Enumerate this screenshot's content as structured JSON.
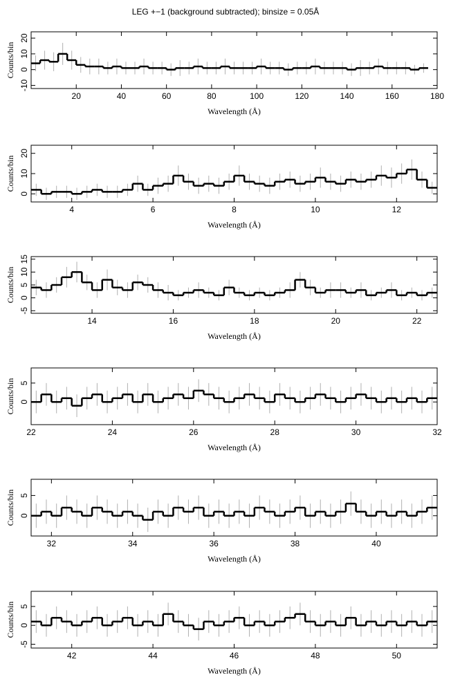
{
  "title": "LEG +−1 (background subtracted); binsize = 0.05Å",
  "chart_data": [
    {
      "type": "line",
      "xlabel": "Wavelength (Å)",
      "ylabel": "Counts/bin",
      "color": "#000000",
      "error_color": "#b0b0b0",
      "xlim": [
        0,
        180
      ],
      "xticks": [
        20,
        40,
        60,
        80,
        100,
        120,
        140,
        160,
        180
      ],
      "ylim": [
        -12,
        24
      ],
      "yticks": [
        -10,
        0,
        10,
        20
      ],
      "x": [
        2,
        6,
        10,
        14,
        18,
        22,
        26,
        30,
        34,
        38,
        42,
        46,
        50,
        54,
        58,
        62,
        66,
        70,
        74,
        78,
        82,
        86,
        90,
        94,
        98,
        102,
        106,
        110,
        114,
        118,
        122,
        126,
        130,
        134,
        138,
        142,
        146,
        150,
        154,
        158,
        162,
        166,
        170,
        174
      ],
      "values": [
        4,
        6,
        5,
        10,
        6,
        3,
        2,
        2,
        1,
        2,
        1,
        1,
        2,
        1,
        1,
        0,
        1,
        1,
        2,
        1,
        1,
        2,
        1,
        1,
        1,
        2,
        1,
        1,
        0,
        1,
        1,
        2,
        1,
        1,
        1,
        0,
        1,
        1,
        2,
        1,
        1,
        1,
        0,
        1
      ],
      "errors": [
        5,
        6,
        6,
        7,
        6,
        5,
        5,
        5,
        4,
        5,
        4,
        4,
        5,
        4,
        4,
        4,
        5,
        4,
        5,
        4,
        4,
        5,
        4,
        4,
        4,
        5,
        4,
        4,
        4,
        4,
        4,
        5,
        4,
        4,
        4,
        4,
        5,
        4,
        5,
        4,
        4,
        4,
        3,
        3
      ]
    },
    {
      "type": "line",
      "xlabel": "Wavelength (Å)",
      "ylabel": "Counts/bin",
      "color": "#000000",
      "error_color": "#b0b0b0",
      "xlim": [
        3,
        13
      ],
      "xticks": [
        4,
        6,
        8,
        10,
        12
      ],
      "ylim": [
        -4,
        24
      ],
      "yticks": [
        0,
        10,
        20
      ],
      "x": [
        3.125,
        3.375,
        3.625,
        3.875,
        4.125,
        4.375,
        4.625,
        4.875,
        5.125,
        5.375,
        5.625,
        5.875,
        6.125,
        6.375,
        6.625,
        6.875,
        7.125,
        7.375,
        7.625,
        7.875,
        8.125,
        8.375,
        8.625,
        8.875,
        9.125,
        9.375,
        9.625,
        9.875,
        10.125,
        10.375,
        10.625,
        10.875,
        11.125,
        11.375,
        11.625,
        11.875,
        12.125,
        12.375,
        12.625,
        12.875
      ],
      "values": [
        2,
        0,
        1,
        1,
        0,
        1,
        2,
        1,
        1,
        2,
        5,
        2,
        4,
        5,
        9,
        6,
        4,
        5,
        4,
        6,
        9,
        6,
        5,
        4,
        6,
        7,
        5,
        6,
        8,
        6,
        5,
        7,
        6,
        7,
        9,
        8,
        10,
        12,
        7,
        3
      ],
      "errors": [
        3,
        3,
        3,
        3,
        3,
        3,
        3,
        3,
        3,
        3,
        4,
        3,
        4,
        4,
        5,
        4,
        4,
        4,
        4,
        4,
        5,
        4,
        4,
        4,
        4,
        4,
        4,
        4,
        5,
        4,
        4,
        4,
        4,
        4,
        5,
        5,
        5,
        5,
        4,
        3
      ]
    },
    {
      "type": "line",
      "xlabel": "Wavelength (Å)",
      "ylabel": "Counts/bin",
      "color": "#000000",
      "error_color": "#b0b0b0",
      "xlim": [
        12.5,
        22.5
      ],
      "xticks": [
        14,
        16,
        18,
        20,
        22
      ],
      "ylim": [
        -6,
        16
      ],
      "yticks": [
        -5,
        0,
        5,
        10,
        15
      ],
      "x": [
        12.625,
        12.875,
        13.125,
        13.375,
        13.625,
        13.875,
        14.125,
        14.375,
        14.625,
        14.875,
        15.125,
        15.375,
        15.625,
        15.875,
        16.125,
        16.375,
        16.625,
        16.875,
        17.125,
        17.375,
        17.625,
        17.875,
        18.125,
        18.375,
        18.625,
        18.875,
        19.125,
        19.375,
        19.625,
        19.875,
        20.125,
        20.375,
        20.625,
        20.875,
        21.125,
        21.375,
        21.625,
        21.875,
        22.125,
        22.375
      ],
      "values": [
        4,
        3,
        5,
        8,
        10,
        6,
        3,
        7,
        4,
        3,
        6,
        5,
        3,
        2,
        1,
        2,
        3,
        2,
        1,
        4,
        2,
        1,
        2,
        1,
        2,
        3,
        7,
        4,
        2,
        3,
        3,
        2,
        3,
        1,
        2,
        3,
        1,
        2,
        1,
        2
      ],
      "errors": [
        3,
        3,
        3,
        4,
        4,
        3,
        3,
        4,
        3,
        3,
        3,
        3,
        3,
        3,
        2,
        2,
        3,
        2,
        2,
        3,
        2,
        2,
        2,
        2,
        2,
        3,
        3,
        3,
        2,
        3,
        3,
        2,
        3,
        2,
        2,
        3,
        2,
        2,
        2,
        2
      ]
    },
    {
      "type": "line",
      "xlabel": "Wavelength (Å)",
      "ylabel": "Counts/bin",
      "color": "#000000",
      "error_color": "#b0b0b0",
      "xlim": [
        22,
        32
      ],
      "xticks": [
        22,
        24,
        26,
        28,
        30,
        32
      ],
      "ylim": [
        -6,
        9
      ],
      "yticks": [
        0,
        5
      ],
      "x": [
        22.125,
        22.375,
        22.625,
        22.875,
        23.125,
        23.375,
        23.625,
        23.875,
        24.125,
        24.375,
        24.625,
        24.875,
        25.125,
        25.375,
        25.625,
        25.875,
        26.125,
        26.375,
        26.625,
        26.875,
        27.125,
        27.625,
        27.875,
        28.125,
        28.375,
        28.625,
        28.875,
        29.125,
        29.375,
        29.625,
        29.875,
        30.125,
        30.375,
        30.625,
        30.875,
        31.125,
        31.375,
        31.625,
        31.875,
        27.375
      ],
      "values": [
        0,
        2,
        0,
        1,
        -1,
        1,
        2,
        0,
        1,
        2,
        0,
        2,
        0,
        1,
        2,
        1,
        3,
        2,
        1,
        0,
        1,
        1,
        0,
        2,
        1,
        0,
        1,
        2,
        1,
        0,
        1,
        2,
        1,
        0,
        1,
        0,
        1,
        0,
        1,
        2
      ],
      "errors": [
        3,
        3,
        3,
        3,
        3,
        3,
        3,
        3,
        3,
        3,
        3,
        3,
        3,
        3,
        3,
        3,
        3,
        3,
        3,
        3,
        3,
        3,
        3,
        3,
        3,
        3,
        3,
        3,
        3,
        3,
        3,
        3,
        3,
        3,
        3,
        3,
        3,
        3,
        3,
        3
      ]
    },
    {
      "type": "line",
      "xlabel": "Wavelength (Å)",
      "ylabel": "Counts/bin",
      "color": "#000000",
      "error_color": "#b0b0b0",
      "xlim": [
        31.5,
        41.5
      ],
      "xticks": [
        32,
        34,
        36,
        38,
        40
      ],
      "ylim": [
        -5,
        9
      ],
      "yticks": [
        0,
        5
      ],
      "x": [
        31.625,
        31.875,
        32.125,
        32.375,
        32.625,
        32.875,
        33.125,
        33.375,
        33.625,
        33.875,
        34.125,
        34.375,
        34.625,
        34.875,
        35.125,
        35.375,
        35.625,
        35.875,
        36.125,
        36.375,
        36.625,
        36.875,
        37.125,
        37.375,
        37.625,
        37.875,
        38.125,
        38.375,
        38.625,
        38.875,
        39.125,
        39.375,
        39.625,
        39.875,
        40.125,
        40.375,
        40.625,
        40.875,
        41.125,
        41.375
      ],
      "values": [
        0,
        1,
        0,
        2,
        1,
        0,
        2,
        1,
        0,
        1,
        0,
        -1,
        1,
        0,
        2,
        1,
        2,
        0,
        1,
        0,
        1,
        0,
        2,
        1,
        0,
        1,
        2,
        0,
        1,
        0,
        1,
        3,
        1,
        0,
        1,
        0,
        1,
        0,
        1,
        2
      ],
      "errors": [
        3,
        3,
        3,
        3,
        3,
        3,
        3,
        3,
        3,
        3,
        3,
        3,
        3,
        3,
        3,
        3,
        3,
        3,
        3,
        3,
        3,
        3,
        3,
        3,
        3,
        3,
        3,
        3,
        3,
        3,
        3,
        3,
        3,
        3,
        3,
        3,
        3,
        3,
        3,
        3
      ]
    },
    {
      "type": "line",
      "xlabel": "Wavelength (Å)",
      "ylabel": "Counts/bin",
      "color": "#000000",
      "error_color": "#b0b0b0",
      "xlim": [
        41,
        51
      ],
      "xticks": [
        42,
        44,
        46,
        48,
        50
      ],
      "ylim": [
        -6,
        9
      ],
      "yticks": [
        -5,
        0,
        5
      ],
      "x": [
        41.125,
        41.375,
        41.625,
        41.875,
        42.125,
        42.375,
        42.625,
        42.875,
        43.125,
        43.375,
        43.625,
        43.875,
        44.125,
        44.375,
        44.625,
        44.875,
        45.125,
        45.375,
        45.625,
        45.875,
        46.125,
        46.375,
        46.625,
        46.875,
        47.125,
        47.375,
        47.625,
        47.875,
        48.125,
        48.375,
        48.625,
        48.875,
        49.125,
        49.375,
        49.625,
        49.875,
        50.125,
        50.375,
        50.625,
        50.875
      ],
      "values": [
        1,
        0,
        2,
        1,
        0,
        1,
        2,
        0,
        1,
        2,
        0,
        1,
        0,
        3,
        1,
        0,
        -1,
        1,
        0,
        1,
        2,
        0,
        1,
        0,
        1,
        2,
        3,
        1,
        0,
        1,
        0,
        2,
        0,
        1,
        0,
        1,
        0,
        1,
        0,
        1
      ],
      "errors": [
        3,
        3,
        3,
        3,
        3,
        3,
        3,
        3,
        3,
        3,
        3,
        3,
        3,
        3,
        3,
        3,
        3,
        3,
        3,
        3,
        3,
        3,
        3,
        3,
        3,
        3,
        3,
        3,
        3,
        3,
        3,
        3,
        3,
        3,
        3,
        3,
        3,
        3,
        3,
        3
      ]
    }
  ]
}
